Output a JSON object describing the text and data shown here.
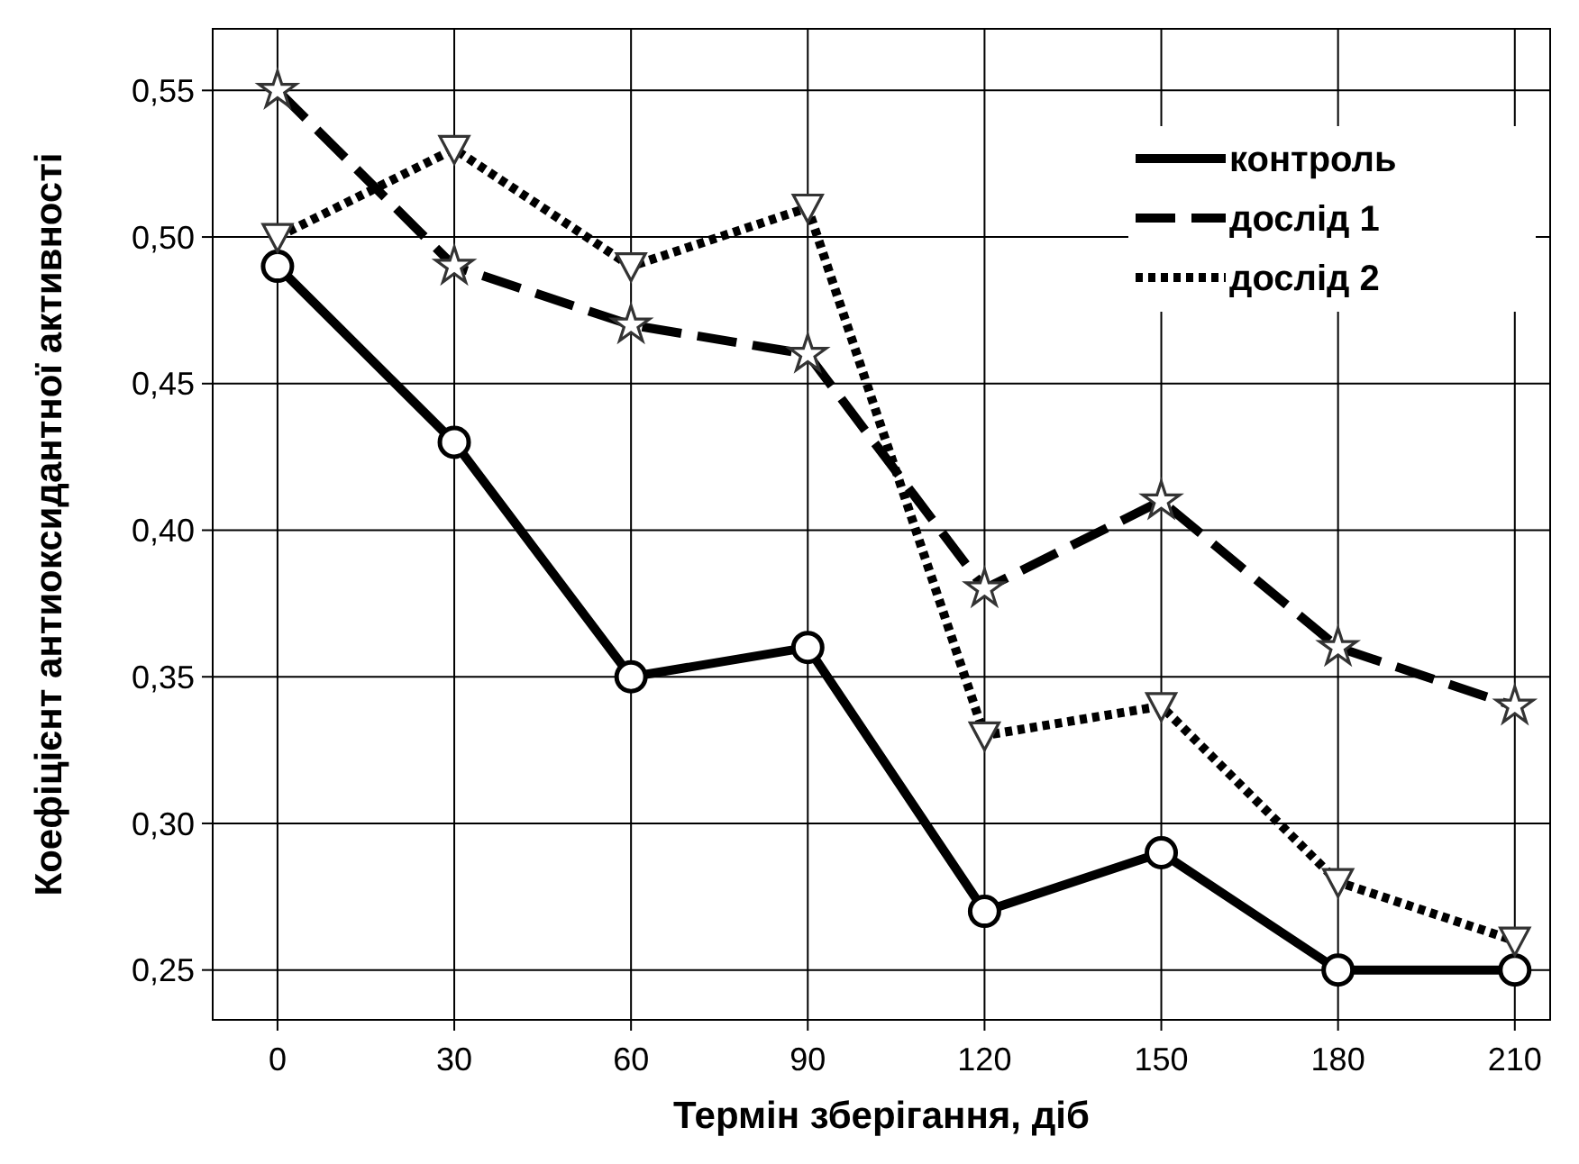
{
  "chart_data": {
    "type": "line",
    "xlabel": "Термін зберігання, діб",
    "ylabel": "Коефіцієнт антиоксидантної активності",
    "x": [
      0,
      30,
      60,
      90,
      120,
      150,
      180,
      210
    ],
    "xlim": [
      -11,
      216
    ],
    "xticks": [
      0,
      30,
      60,
      90,
      120,
      150,
      180,
      210
    ],
    "ylim": [
      0.233,
      0.571
    ],
    "yticks": [
      {
        "value": 0.25,
        "label": "0,25"
      },
      {
        "value": 0.3,
        "label": "0,30"
      },
      {
        "value": 0.35,
        "label": "0,35"
      },
      {
        "value": 0.4,
        "label": "0,40"
      },
      {
        "value": 0.45,
        "label": "0,45"
      },
      {
        "value": 0.5,
        "label": "0,50"
      },
      {
        "value": 0.55,
        "label": "0,55"
      }
    ],
    "grid": true,
    "legend": "top right",
    "series": [
      {
        "name": "контроль",
        "color": "#000000",
        "line_style": "solid",
        "marker": "circle",
        "values": [
          0.49,
          0.43,
          0.35,
          0.36,
          0.27,
          0.29,
          0.25,
          0.25
        ]
      },
      {
        "name": "дослід 1",
        "color": "#000000",
        "line_style": "dashed",
        "marker": "star",
        "values": [
          0.55,
          0.49,
          0.47,
          0.46,
          0.38,
          0.41,
          0.36,
          0.34
        ]
      },
      {
        "name": "дослід 2",
        "color": "#000000",
        "line_style": "dotted",
        "marker": "triangle",
        "values": [
          0.5,
          0.53,
          0.49,
          0.51,
          0.33,
          0.34,
          0.28,
          0.26
        ]
      }
    ]
  }
}
